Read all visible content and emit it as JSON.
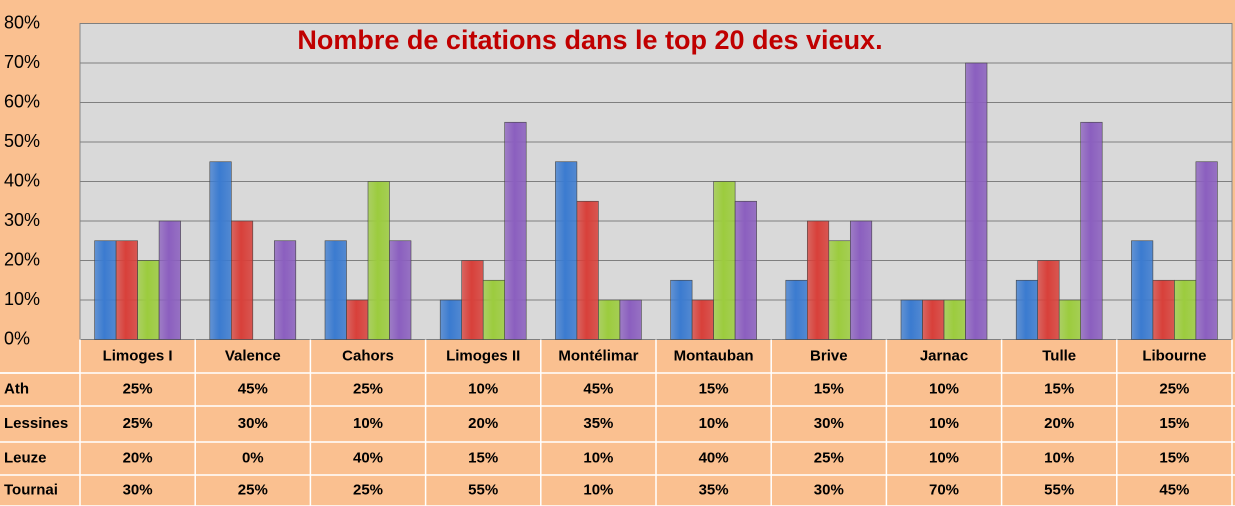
{
  "chart_data": {
    "type": "bar",
    "title": "Nombre de citations dans le top 20 des vieux.",
    "categories": [
      "Limoges I",
      "Valence",
      "Cahors",
      "Limoges II",
      "Montélimar",
      "Montauban",
      "Brive",
      "Jarnac",
      "Tulle",
      "Libourne"
    ],
    "series": [
      {
        "name": "Ath",
        "color": "#3b7bd0",
        "values": [
          25,
          45,
          25,
          10,
          45,
          15,
          15,
          10,
          15,
          25
        ],
        "value_labels": [
          "25%",
          "45%",
          "25%",
          "10%",
          "45%",
          "15%",
          "15%",
          "10%",
          "15%",
          "25%"
        ]
      },
      {
        "name": "Lessines",
        "color": "#d8403a",
        "values": [
          25,
          30,
          10,
          20,
          35,
          10,
          30,
          10,
          20,
          15
        ],
        "value_labels": [
          "25%",
          "30%",
          "10%",
          "20%",
          "35%",
          "10%",
          "30%",
          "10%",
          "20%",
          "15%"
        ]
      },
      {
        "name": "Leuze",
        "color": "#9ccc3e",
        "values": [
          20,
          0,
          40,
          15,
          10,
          40,
          25,
          10,
          10,
          15
        ],
        "value_labels": [
          "20%",
          "0%",
          "40%",
          "15%",
          "10%",
          "40%",
          "25%",
          "10%",
          "10%",
          "15%"
        ]
      },
      {
        "name": "Tournai",
        "color": "#8b5fbf",
        "values": [
          30,
          25,
          25,
          55,
          10,
          35,
          30,
          70,
          55,
          45
        ],
        "value_labels": [
          "30%",
          "25%",
          "25%",
          "55%",
          "10%",
          "35%",
          "30%",
          "70%",
          "55%",
          "45%"
        ]
      }
    ],
    "ylim": [
      0,
      80
    ],
    "yticks": [
      {
        "value": 0,
        "label": "0%"
      },
      {
        "value": 10,
        "label": "10%"
      },
      {
        "value": 20,
        "label": "20%"
      },
      {
        "value": 30,
        "label": "30%"
      },
      {
        "value": 40,
        "label": "40%"
      },
      {
        "value": 50,
        "label": "50%"
      },
      {
        "value": 60,
        "label": "60%"
      },
      {
        "value": 70,
        "label": "70%"
      },
      {
        "value": 80,
        "label": "80%"
      }
    ],
    "grid": true
  }
}
